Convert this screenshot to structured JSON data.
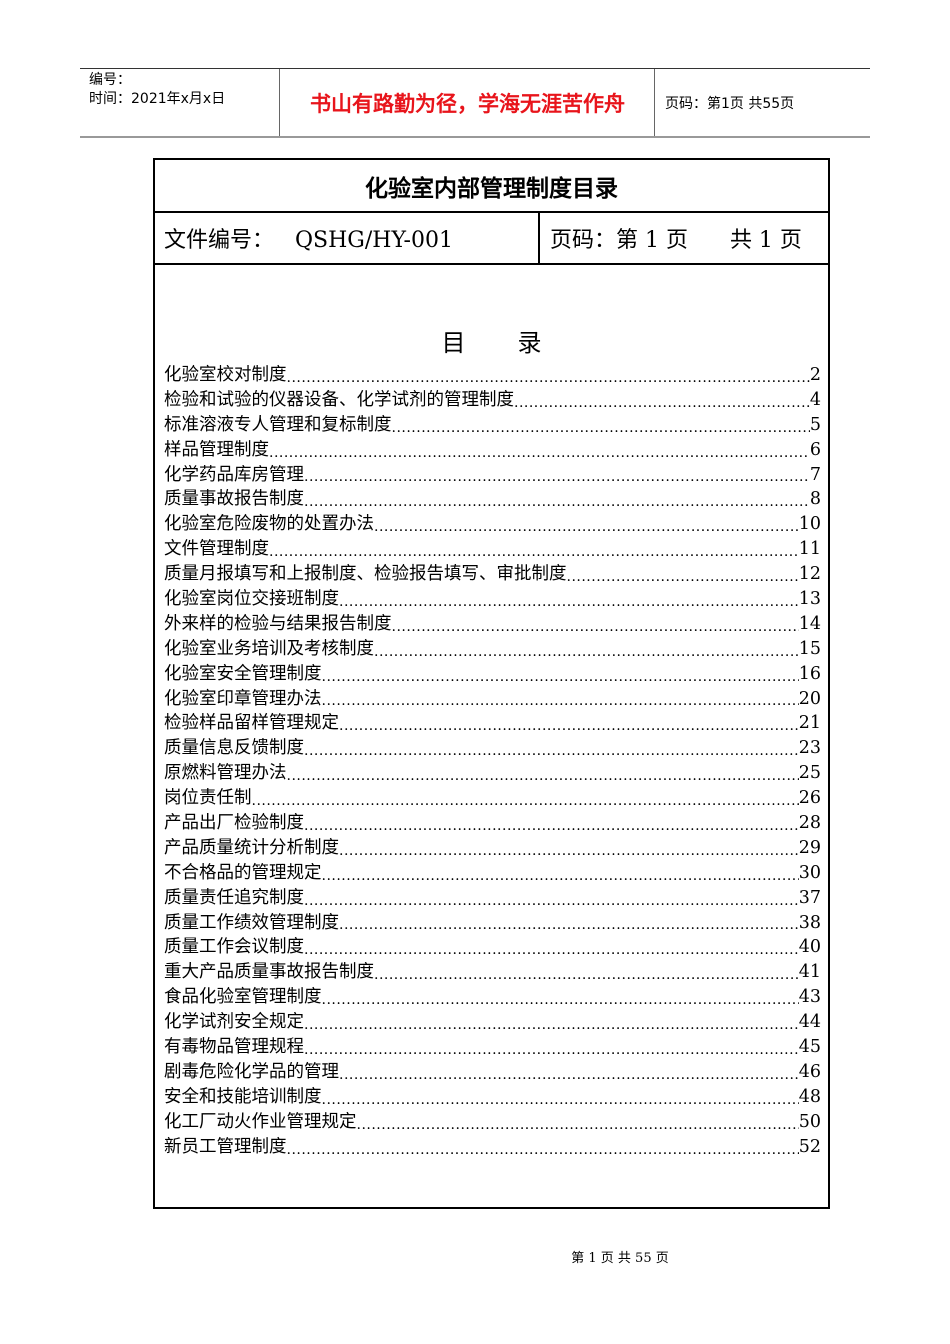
{
  "header": {
    "number_label": "编号：",
    "date_label": "时间：2021年x月x日",
    "motto": "书山有路勤为径，学海无涯苦作舟",
    "motto_color": "#e8141b",
    "page_info": "页码：第1页  共55页"
  },
  "doc": {
    "title": "化验室内部管理制度目录",
    "file_no": "文件编号：   QSHG/HY-001",
    "page": "页码：第 1 页      共 1 页",
    "toc_heading": [
      "目",
      "录"
    ],
    "entries": [
      {
        "title": "化验室校对制度",
        "page": "2"
      },
      {
        "title": "检验和试验的仪器设备、化学试剂的管理制度",
        "page": "4"
      },
      {
        "title": "标准溶液专人管理和复标制度",
        "page": "5"
      },
      {
        "title": "样品管理制度",
        "page": "6"
      },
      {
        "title": "化学药品库房管理",
        "page": "7"
      },
      {
        "title": "质量事故报告制度",
        "page": "8"
      },
      {
        "title": "化验室危险废物的处置办法",
        "page": "10"
      },
      {
        "title": "文件管理制度",
        "page": "11"
      },
      {
        "title": "质量月报填写和上报制度、检验报告填写、审批制度",
        "page": "12"
      },
      {
        "title": "化验室岗位交接班制度",
        "page": "13"
      },
      {
        "title": "外来样的检验与结果报告制度",
        "page": "14"
      },
      {
        "title": "化验室业务培训及考核制度",
        "page": "15"
      },
      {
        "title": "化验室安全管理制度",
        "page": "16"
      },
      {
        "title": "化验室印章管理办法",
        "page": "20"
      },
      {
        "title": "检验样品留样管理规定",
        "page": "21"
      },
      {
        "title": "质量信息反馈制度",
        "page": "23"
      },
      {
        "title": "原燃料管理办法",
        "page": "25"
      },
      {
        "title": "岗位责任制",
        "page": "26"
      },
      {
        "title": "产品出厂检验制度",
        "page": "28"
      },
      {
        "title": "产品质量统计分析制度",
        "page": "29"
      },
      {
        "title": "不合格品的管理规定",
        "page": "30"
      },
      {
        "title": "质量责任追究制度",
        "page": "37"
      },
      {
        "title": "质量工作绩效管理制度",
        "page": "38"
      },
      {
        "title": "质量工作会议制度",
        "page": "40"
      },
      {
        "title": "重大产品质量事故报告制度",
        "page": "41"
      },
      {
        "title": "食品化验室管理制度",
        "page": "43"
      },
      {
        "title": "化学试剂安全规定",
        "page": "44"
      },
      {
        "title": "有毒物品管理规程",
        "page": "45"
      },
      {
        "title": "剧毒危险化学品的管理",
        "page": "46"
      },
      {
        "title": "安全和技能培训制度",
        "page": "48"
      },
      {
        "title": "化工厂动火作业管理规定",
        "page": "50"
      },
      {
        "title": "新员工管理制度",
        "page": "52"
      }
    ]
  },
  "footer": {
    "page_text": "第 1 页 共 55 页"
  }
}
